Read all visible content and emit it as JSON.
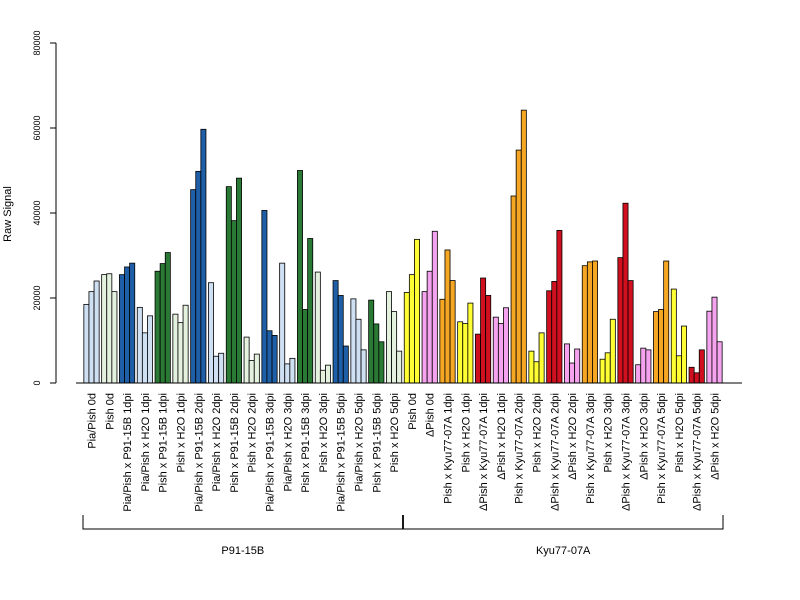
{
  "chart_data": {
    "type": "bar",
    "ylabel": "Raw Signal",
    "ylim": [
      0,
      80000
    ],
    "yticks": [
      0,
      20000,
      40000,
      60000,
      80000
    ],
    "palette": {
      "light_blue": "#cfe0f3",
      "blue": "#1f5fa8",
      "light_green": "#e3f1de",
      "green": "#2a7a35",
      "yellow": "#ffff33",
      "pink": "#f6a3ef",
      "orange": "#f5a623",
      "red": "#d0101e"
    },
    "categories": [
      {
        "label": "Pia/Pish 0d",
        "values": [
          18500,
          21500,
          24000
        ],
        "color": "light_blue"
      },
      {
        "label": "Pish 0d",
        "values": [
          25500,
          25700,
          21500
        ],
        "color": "light_green"
      },
      {
        "label": "Pia/Pish x P91-15B 1dpi",
        "values": [
          25500,
          27300,
          28200
        ],
        "color": "blue"
      },
      {
        "label": "Pia/Pish x H2O 1dpi",
        "values": [
          17800,
          11800,
          15800
        ],
        "color": "light_blue"
      },
      {
        "label": "Pish x P91-15B 1dpi",
        "values": [
          26300,
          28100,
          30700
        ],
        "color": "green"
      },
      {
        "label": "Pish x H2O 1dpi",
        "values": [
          16200,
          14200,
          18300
        ],
        "color": "light_green"
      },
      {
        "label": "Pia/Pish x P91-15B 2dpi",
        "values": [
          45500,
          49800,
          59700
        ],
        "color": "blue"
      },
      {
        "label": "Pia/Pish x H2O 2dpi",
        "values": [
          23600,
          6300,
          7000
        ],
        "color": "light_blue"
      },
      {
        "label": "Pish x P91-15B 2dpi",
        "values": [
          46200,
          38200,
          48200
        ],
        "color": "green"
      },
      {
        "label": "Pish x H2O 2dpi",
        "values": [
          10800,
          5300,
          6800
        ],
        "color": "light_green"
      },
      {
        "label": "Pia/Pish x P91-15B 3dpi",
        "values": [
          40600,
          12300,
          11200
        ],
        "color": "blue"
      },
      {
        "label": "Pia/Pish x H2O 3dpi",
        "values": [
          28200,
          4500,
          5800
        ],
        "color": "light_blue"
      },
      {
        "label": "Pish x P91-15B 3dpi",
        "values": [
          50000,
          17300,
          34000
        ],
        "color": "green"
      },
      {
        "label": "Pish x H2O 3dpi",
        "values": [
          26100,
          3000,
          4200
        ],
        "color": "light_green"
      },
      {
        "label": "Pia/Pish x P91-15B 5dpi",
        "values": [
          24100,
          20600,
          8700
        ],
        "color": "blue"
      },
      {
        "label": "Pia/Pish x H2O 5dpi",
        "values": [
          19800,
          15000,
          7800
        ],
        "color": "light_blue"
      },
      {
        "label": "Pish x P91-15B 5dpi",
        "values": [
          19500,
          13900,
          9700
        ],
        "color": "green"
      },
      {
        "label": "Pish x H2O 5dpi",
        "values": [
          21500,
          16800,
          7500
        ],
        "color": "light_green"
      },
      {
        "label": "Pish 0d",
        "values": [
          21300,
          25500,
          33800
        ],
        "color": "yellow"
      },
      {
        "label": "ΔPish 0d",
        "values": [
          21500,
          26300,
          35700
        ],
        "color": "pink"
      },
      {
        "label": "Pish x Kyu77-07A 1dpi",
        "values": [
          19700,
          31300,
          24100
        ],
        "color": "orange"
      },
      {
        "label": "Pish x H2O 1dpi",
        "values": [
          14400,
          14000,
          18800
        ],
        "color": "yellow"
      },
      {
        "label": "ΔPish x Kyu77-07A 1dpi",
        "values": [
          11500,
          24700,
          20600
        ],
        "color": "red"
      },
      {
        "label": "ΔPish x H2O 1dpi",
        "values": [
          15500,
          14000,
          17700
        ],
        "color": "pink"
      },
      {
        "label": "Pish x Kyu77-07A 2dpi",
        "values": [
          44000,
          54800,
          64200
        ],
        "color": "orange"
      },
      {
        "label": "Pish x H2O 2dpi",
        "values": [
          7500,
          5000,
          11800
        ],
        "color": "yellow"
      },
      {
        "label": "ΔPish x Kyu77-07A 2dpi",
        "values": [
          21700,
          23900,
          35900
        ],
        "color": "red"
      },
      {
        "label": "ΔPish x H2O 2dpi",
        "values": [
          9200,
          4700,
          8000
        ],
        "color": "pink"
      },
      {
        "label": "Pish x Kyu77-07A 3dpi",
        "values": [
          27600,
          28500,
          28700
        ],
        "color": "orange"
      },
      {
        "label": "Pish x H2O 3dpi",
        "values": [
          5600,
          7100,
          15000
        ],
        "color": "yellow"
      },
      {
        "label": "ΔPish x Kyu77-07A 3dpi",
        "values": [
          29500,
          42300,
          24100
        ],
        "color": "red"
      },
      {
        "label": "ΔPish x H2O 3dpi",
        "values": [
          4300,
          8200,
          7800
        ],
        "color": "pink"
      },
      {
        "label": "Pish x Kyu77-07A 5dpi",
        "values": [
          16800,
          17300,
          28700
        ],
        "color": "orange"
      },
      {
        "label": "Pish x H2O 5dpi",
        "values": [
          22100,
          6400,
          13400
        ],
        "color": "yellow"
      },
      {
        "label": "ΔPish x Kyu77-07A 5dpi",
        "values": [
          3700,
          2400,
          7800
        ],
        "color": "red"
      },
      {
        "label": "ΔPish x H2O 5dpi",
        "values": [
          16900,
          20200,
          9700
        ],
        "color": "pink"
      }
    ],
    "groups": [
      {
        "label": "P91-15B",
        "first": 0,
        "last": 17
      },
      {
        "label": "Kyu77-07A",
        "first": 18,
        "last": 35
      }
    ]
  }
}
